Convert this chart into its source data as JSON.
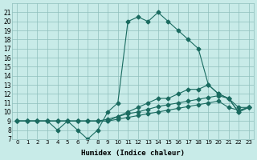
{
  "xlabel": "Humidex (Indice chaleur)",
  "ylabel": "",
  "background_color": "#c8ebe8",
  "grid_color": "#8fbfbc",
  "line_color": "#1a6b60",
  "xlim": [
    -0.5,
    23.5
  ],
  "ylim": [
    7,
    22
  ],
  "yticks": [
    7,
    8,
    9,
    10,
    11,
    12,
    13,
    14,
    15,
    16,
    17,
    18,
    19,
    20,
    21
  ],
  "xticks": [
    0,
    1,
    2,
    3,
    4,
    5,
    6,
    7,
    8,
    9,
    10,
    11,
    12,
    13,
    14,
    15,
    16,
    17,
    18,
    19,
    20,
    21,
    22,
    23
  ],
  "series": [
    {
      "x": [
        0,
        1,
        2,
        3,
        4,
        5,
        6,
        7,
        8,
        9,
        10,
        11,
        12,
        13,
        14,
        15,
        16,
        17,
        18,
        19,
        20,
        21,
        22,
        23
      ],
      "y": [
        9,
        9,
        9,
        9,
        8,
        9,
        8,
        7,
        8,
        10,
        11,
        20,
        20.5,
        20,
        21,
        20,
        19,
        18,
        17,
        13,
        12,
        11.5,
        10,
        10.5
      ]
    },
    {
      "x": [
        0,
        1,
        2,
        3,
        4,
        5,
        6,
        7,
        8,
        9,
        10,
        11,
        12,
        13,
        14,
        15,
        16,
        17,
        18,
        19,
        20,
        21,
        22,
        23
      ],
      "y": [
        9,
        9,
        9,
        9,
        9,
        9,
        9,
        9,
        9,
        9,
        9.5,
        10,
        10.5,
        11,
        11.5,
        11.5,
        12,
        12.5,
        12.5,
        13,
        12,
        11.5,
        10,
        10.5
      ]
    },
    {
      "x": [
        0,
        1,
        2,
        3,
        4,
        5,
        6,
        7,
        8,
        9,
        10,
        11,
        12,
        13,
        14,
        15,
        16,
        17,
        18,
        19,
        20,
        21,
        22,
        23
      ],
      "y": [
        9,
        9,
        9,
        9,
        9,
        9,
        9,
        9,
        9,
        9.2,
        9.5,
        9.8,
        10,
        10.3,
        10.6,
        10.8,
        11,
        11.2,
        11.4,
        11.6,
        11.8,
        11.5,
        10.5,
        10.5
      ]
    },
    {
      "x": [
        0,
        1,
        2,
        3,
        4,
        5,
        6,
        7,
        8,
        9,
        10,
        11,
        12,
        13,
        14,
        15,
        16,
        17,
        18,
        19,
        20,
        21,
        22,
        23
      ],
      "y": [
        9,
        9,
        9,
        9,
        9,
        9,
        9,
        9,
        9,
        9,
        9.2,
        9.4,
        9.6,
        9.8,
        10,
        10.2,
        10.4,
        10.6,
        10.8,
        11,
        11.2,
        10.5,
        10.2,
        10.5
      ]
    }
  ]
}
